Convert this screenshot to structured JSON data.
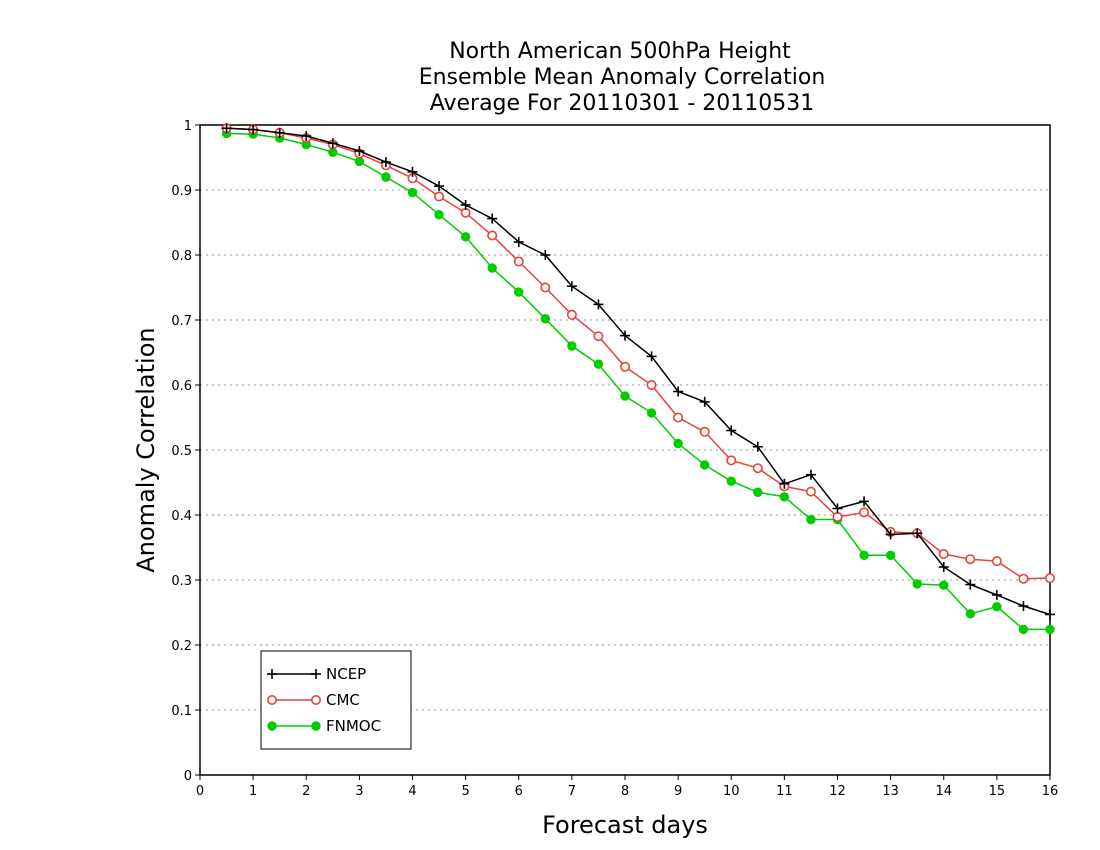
{
  "chart_data": {
    "type": "line",
    "title": [
      "North American 500hPa Height",
      "Ensemble Mean Anomaly Correlation",
      "Average For 20110301 - 20110531"
    ],
    "xlabel": "Forecast days",
    "ylabel": "Anomaly Correlation",
    "xlim": [
      0,
      16
    ],
    "ylim": [
      0,
      1
    ],
    "xticks": [
      "0",
      "1",
      "2",
      "3",
      "4",
      "5",
      "6",
      "7",
      "8",
      "9",
      "10",
      "11",
      "12",
      "13",
      "14",
      "15",
      "16"
    ],
    "yticks": [
      "0",
      "0.1",
      "0.2",
      "0.3",
      "0.4",
      "0.5",
      "0.6",
      "0.7",
      "0.8",
      "0.9",
      "1"
    ],
    "grid": true,
    "legend_position": "bottom-left",
    "x": [
      0.5,
      1,
      1.5,
      2,
      2.5,
      3,
      3.5,
      4,
      4.5,
      5,
      5.5,
      6,
      6.5,
      7,
      7.5,
      8,
      8.5,
      9,
      9.5,
      10,
      10.5,
      11,
      11.5,
      12,
      12.5,
      13,
      13.5,
      14,
      14.5,
      15,
      15.5,
      16
    ],
    "series": [
      {
        "name": "NCEP",
        "color": "#000000",
        "marker": "plus",
        "values": [
          0.995,
          0.993,
          0.988,
          0.983,
          0.972,
          0.96,
          0.943,
          0.928,
          0.906,
          0.877,
          0.856,
          0.82,
          0.8,
          0.752,
          0.724,
          0.676,
          0.644,
          0.59,
          0.574,
          0.53,
          0.505,
          0.448,
          0.462,
          0.41,
          0.421,
          0.37,
          0.372,
          0.32,
          0.293,
          0.277,
          0.26,
          0.247
        ]
      },
      {
        "name": "CMC",
        "color": "#e8413f",
        "marker": "open-circle",
        "values": [
          0.995,
          0.993,
          0.988,
          0.98,
          0.97,
          0.956,
          0.938,
          0.918,
          0.89,
          0.865,
          0.83,
          0.79,
          0.75,
          0.708,
          0.675,
          0.628,
          0.6,
          0.55,
          0.528,
          0.484,
          0.472,
          0.444,
          0.436,
          0.397,
          0.404,
          0.374,
          0.372,
          0.34,
          0.332,
          0.329,
          0.302,
          0.303
        ]
      },
      {
        "name": "FNMOC",
        "color": "#00cc00",
        "marker": "filled-circle",
        "values": [
          0.987,
          0.986,
          0.98,
          0.97,
          0.958,
          0.944,
          0.92,
          0.896,
          0.862,
          0.828,
          0.78,
          0.743,
          0.702,
          0.66,
          0.632,
          0.583,
          0.557,
          0.51,
          0.477,
          0.452,
          0.435,
          0.428,
          0.393,
          0.393,
          0.338,
          0.338,
          0.294,
          0.292,
          0.248,
          0.259,
          0.224,
          0.224
        ]
      }
    ]
  }
}
